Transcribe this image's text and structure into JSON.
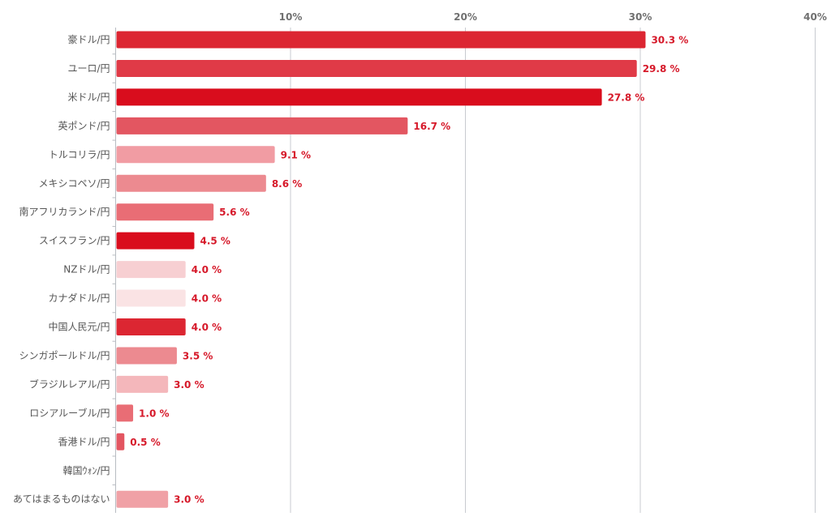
{
  "chart_data": {
    "type": "bar",
    "orientation": "horizontal",
    "title": "",
    "xlabel": "",
    "ylabel": "",
    "xlim": [
      0,
      40
    ],
    "x_ticks": [
      10,
      20,
      30,
      40
    ],
    "x_tick_labels": [
      "10%",
      "20%",
      "30%",
      "40%"
    ],
    "grid": true,
    "legend": "none",
    "categories": [
      "豪ドル/円",
      "ユーロ/円",
      "米ドル/円",
      "英ポンド/円",
      "トルコリラ/円",
      "メキシコペソ/円",
      "南アフリカランド/円",
      "スイスフラン/円",
      "NZドル/円",
      "カナダドル/円",
      "中国人民元/円",
      "シンガポールドル/円",
      "ブラジルレアル/円",
      "ロシアルーブル/円",
      "香港ドル/円",
      "韓国ｳｫﾝ/円",
      "あてはまるものはない"
    ],
    "values": [
      30.3,
      29.8,
      27.8,
      16.7,
      9.1,
      8.6,
      5.6,
      4.5,
      4.0,
      4.0,
      4.0,
      3.5,
      3.0,
      1.0,
      0.5,
      0.0,
      3.0
    ],
    "value_labels": [
      "30.3 %",
      "29.8 %",
      "27.8 %",
      "16.7 %",
      "9.1 %",
      "8.6 %",
      "5.6 %",
      "4.5 %",
      "4.0 %",
      "4.0 %",
      "4.0 %",
      "3.5 %",
      "3.0 %",
      "1.0 %",
      "0.5 %",
      "",
      "3.0 %"
    ],
    "colors": [
      "#dc2632",
      "#e03a47",
      "#d90d1d",
      "#e35661",
      "#f19ca3",
      "#ec8a90",
      "#e96d75",
      "#d90d1d",
      "#f7cfd2",
      "#fae3e4",
      "#dc2632",
      "#ec8a90",
      "#f4b7bb",
      "#e96d75",
      "#e35661",
      "#fdf2f3",
      "#f0a1a6"
    ],
    "value_label_color": "#d6192a",
    "gridline_color": "#c8cbd0",
    "axis_color": "#b8bcc2"
  }
}
